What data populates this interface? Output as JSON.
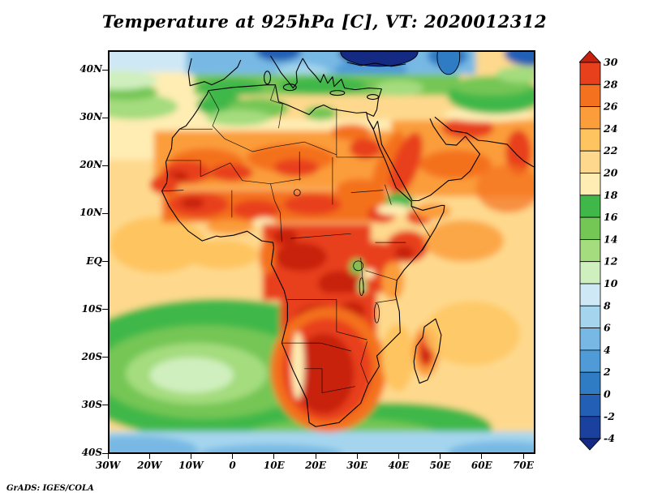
{
  "title": "Temperature at 925hPa [C], VT: 2020012312",
  "credit": "GrADS: IGES/COLA",
  "chart_data": {
    "type": "heatmap",
    "title": "Temperature at 925hPa [C], VT: 2020012312",
    "variable": "Temperature",
    "level_hPa": 925,
    "units": "C",
    "valid_time": "2020012312",
    "domain": {
      "region": "Africa, Mediterranean, Middle East and surrounding oceans",
      "lon_range": [
        "30W",
        "73E"
      ],
      "lat_range": [
        "40S",
        "44N"
      ]
    },
    "x_axis": {
      "ticks": [
        "30W",
        "20W",
        "10W",
        "0",
        "10E",
        "20E",
        "30E",
        "40E",
        "50E",
        "60E",
        "70E"
      ]
    },
    "y_axis": {
      "ticks": [
        "40N",
        "30N",
        "20N",
        "10N",
        "EQ",
        "10S",
        "20S",
        "30S",
        "40S"
      ]
    },
    "colorbar": {
      "orientation": "vertical-right",
      "labels": [
        "30",
        "28",
        "26",
        "24",
        "22",
        "20",
        "18",
        "16",
        "14",
        "12",
        "10",
        "8",
        "6",
        "4",
        "2",
        "0",
        "-2",
        "-4"
      ],
      "colors_top_to_bottom": [
        "#c8200e",
        "#e8401c",
        "#f4711f",
        "#fb9d3a",
        "#fec45f",
        "#fed98d",
        "#ffedb3",
        "#3fb849",
        "#74c655",
        "#a4dc7e",
        "#d0efbe",
        "#cfe8f5",
        "#a5d5ee",
        "#77b9e4",
        "#4f9bd8",
        "#2f7cc4",
        "#2360b5",
        "#1b419f",
        "#142a83"
      ],
      "top_arrow_meaning": "above 30 C",
      "bottom_arrow_meaning": "below -4 C"
    },
    "field_summary": [
      {
        "region": "Sahara and Sahel",
        "approx_C": "24 to 30"
      },
      {
        "region": "Congo Basin / Central Africa",
        "approx_C": "26 to 30+"
      },
      {
        "region": "Southern Africa interior (Namibia/Botswana/South Africa)",
        "approx_C": "28 to 30+"
      },
      {
        "region": "Atlas Mountains and coastal Algeria/Tunisia",
        "approx_C": "12 to 18"
      },
      {
        "region": "Mediterranean and southern Europe",
        "approx_C": "2 to 12"
      },
      {
        "region": "Alps and Black Sea vicinity (coldest)",
        "approx_C": "-4 and below"
      },
      {
        "region": "Tropical Atlantic and Indian Ocean",
        "approx_C": "20 to 24"
      },
      {
        "region": "South Atlantic 25S-35S",
        "approx_C": "10 to 16"
      },
      {
        "region": "Southern Ocean near 40S",
        "approx_C": "4 to 10"
      },
      {
        "region": "Madagascar interior",
        "approx_C": "26 to 30"
      },
      {
        "region": "Arabian Peninsula and Red Sea",
        "approx_C": "24 to 30"
      },
      {
        "region": "Iranian plateau (upper right)",
        "approx_C": "12 to 18"
      }
    ]
  }
}
